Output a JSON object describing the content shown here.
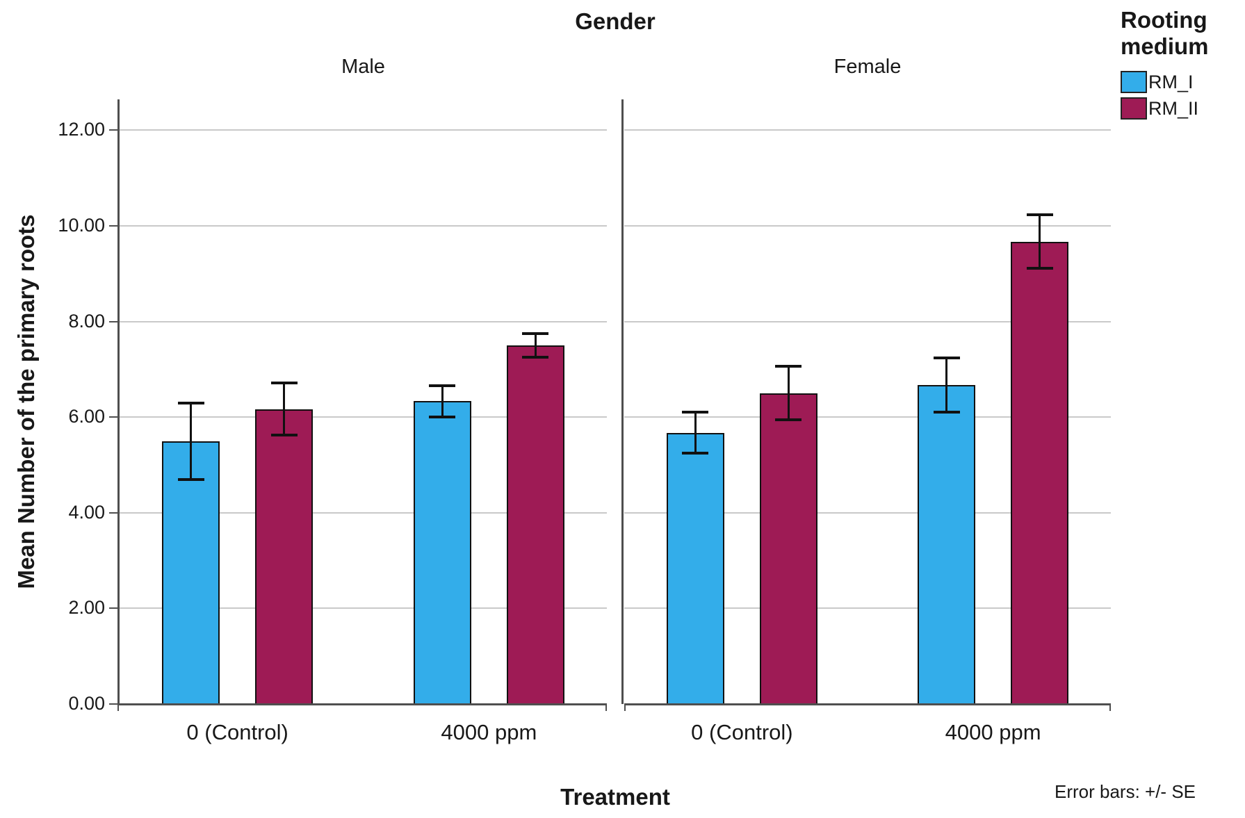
{
  "chart_data": {
    "type": "bar",
    "title": "Gender",
    "panel_labels": [
      "Male",
      "Female"
    ],
    "categories": [
      "0 (Control)",
      "4000 ppm"
    ],
    "xlabel": "Treatment",
    "ylabel": "Mean Number of the primary roots",
    "footnote": "Error bars: +/- SE",
    "legend_title": "Rooting medium",
    "legend_position": "top-right",
    "grid": true,
    "ylim": [
      0,
      12.65
    ],
    "yticks": [
      0,
      2,
      4,
      6,
      8,
      10,
      12
    ],
    "ytick_labels": [
      "0.00",
      "2.00",
      "4.00",
      "6.00",
      "8.00",
      "10.00",
      "12.00"
    ],
    "error_bars": "+/- SE",
    "series": [
      {
        "name": "RM_I",
        "color": "#33ADEA",
        "values": {
          "Male": [
            5.5,
            6.33
          ],
          "Female": [
            5.67,
            6.67
          ]
        },
        "se": {
          "Male": [
            0.8,
            0.33
          ],
          "Female": [
            0.43,
            0.57
          ]
        }
      },
      {
        "name": "RM_II",
        "color": "#9E1B55",
        "values": {
          "Male": [
            6.17,
            7.5
          ],
          "Female": [
            6.5,
            9.67
          ]
        },
        "se": {
          "Male": [
            0.55,
            0.24
          ],
          "Female": [
            0.56,
            0.56
          ]
        }
      }
    ]
  }
}
